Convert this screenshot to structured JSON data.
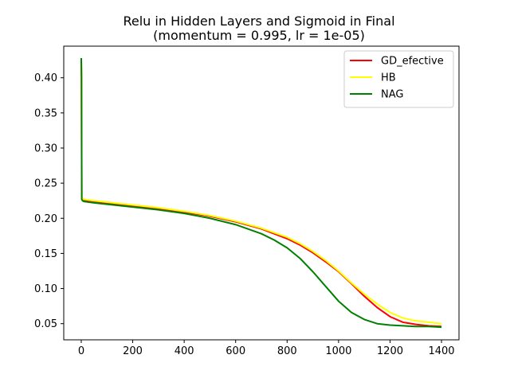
{
  "chart_data": {
    "type": "line",
    "title": "Relu in Hidden Layers and Sigmoid in Final",
    "subtitle": "(momentum = 0.995, lr = 1e-05)",
    "xlabel": "",
    "ylabel": "",
    "xlim": [
      -68,
      1468
    ],
    "ylim": [
      0.027,
      0.445
    ],
    "xticks": [
      0,
      200,
      400,
      600,
      800,
      1000,
      1200,
      1400
    ],
    "yticks": [
      0.05,
      0.1,
      0.15,
      0.2,
      0.25,
      0.3,
      0.35,
      0.4
    ],
    "ytick_labels": [
      "0.05",
      "0.10",
      "0.15",
      "0.20",
      "0.25",
      "0.30",
      "0.35",
      "0.40"
    ],
    "grid": false,
    "legend_position": "top-right",
    "series": [
      {
        "name": "GD_efective",
        "color": "#ff0000",
        "x": [
          0,
          1,
          2,
          5,
          10,
          50,
          100,
          200,
          300,
          400,
          500,
          600,
          700,
          800,
          850,
          900,
          950,
          1000,
          1050,
          1100,
          1150,
          1200,
          1250,
          1300,
          1350,
          1400
        ],
        "y": [
          0.428,
          0.4,
          0.229,
          0.227,
          0.226,
          0.224,
          0.222,
          0.218,
          0.214,
          0.209,
          0.203,
          0.195,
          0.185,
          0.171,
          0.162,
          0.151,
          0.138,
          0.124,
          0.107,
          0.089,
          0.073,
          0.06,
          0.052,
          0.049,
          0.047,
          0.046
        ]
      },
      {
        "name": "HB",
        "color": "#ffff00",
        "x": [
          0,
          1,
          2,
          5,
          10,
          50,
          100,
          200,
          300,
          400,
          500,
          600,
          700,
          800,
          850,
          900,
          950,
          1000,
          1050,
          1100,
          1150,
          1200,
          1250,
          1300,
          1350,
          1400
        ],
        "y": [
          0.428,
          0.4,
          0.229,
          0.228,
          0.227,
          0.225,
          0.223,
          0.219,
          0.215,
          0.21,
          0.204,
          0.196,
          0.186,
          0.173,
          0.164,
          0.153,
          0.14,
          0.125,
          0.108,
          0.092,
          0.078,
          0.066,
          0.058,
          0.054,
          0.052,
          0.05
        ]
      },
      {
        "name": "NAG",
        "color": "#008000",
        "x": [
          0,
          1,
          2,
          5,
          10,
          50,
          100,
          200,
          300,
          400,
          500,
          600,
          700,
          750,
          800,
          850,
          900,
          950,
          1000,
          1050,
          1100,
          1150,
          1200,
          1250,
          1300,
          1350,
          1400
        ],
        "y": [
          0.428,
          0.4,
          0.227,
          0.225,
          0.224,
          0.222,
          0.22,
          0.216,
          0.212,
          0.207,
          0.2,
          0.191,
          0.178,
          0.169,
          0.158,
          0.143,
          0.124,
          0.103,
          0.082,
          0.066,
          0.056,
          0.05,
          0.048,
          0.047,
          0.046,
          0.046,
          0.045
        ]
      }
    ]
  }
}
